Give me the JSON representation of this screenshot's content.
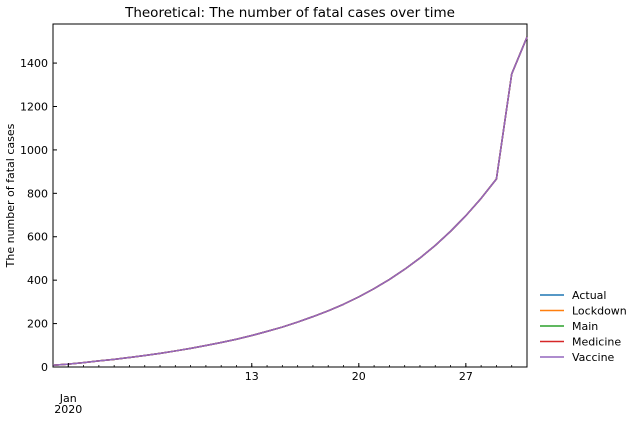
{
  "chart_data": {
    "type": "line",
    "title": "Theoretical: The number of fatal cases over time",
    "ylabel": "The number of fatal cases",
    "xlabel": "",
    "x_axis": {
      "type": "date",
      "range": [
        "2019-12-31",
        "2020-01-31"
      ],
      "major_ticks": [
        {
          "date": "2020-01-01",
          "label": "Jan",
          "sublabel": "2020"
        },
        {
          "date": "2020-01-13",
          "label": "13",
          "sublabel": ""
        },
        {
          "date": "2020-01-20",
          "label": "20",
          "sublabel": ""
        },
        {
          "date": "2020-01-27",
          "label": "27",
          "sublabel": ""
        }
      ]
    },
    "ylim": [
      0,
      1580
    ],
    "yticks": [
      0,
      200,
      400,
      600,
      800,
      1000,
      1200,
      1400
    ],
    "grid": false,
    "legend_placement": "right-bottom",
    "x": [
      "2019-12-31",
      "2020-01-01",
      "2020-01-02",
      "2020-01-03",
      "2020-01-04",
      "2020-01-05",
      "2020-01-06",
      "2020-01-07",
      "2020-01-08",
      "2020-01-09",
      "2020-01-10",
      "2020-01-11",
      "2020-01-12",
      "2020-01-13",
      "2020-01-14",
      "2020-01-15",
      "2020-01-16",
      "2020-01-17",
      "2020-01-18",
      "2020-01-19",
      "2020-01-20",
      "2020-01-21",
      "2020-01-22",
      "2020-01-23",
      "2020-01-24",
      "2020-01-25",
      "2020-01-26",
      "2020-01-27",
      "2020-01-28",
      "2020-01-29",
      "2020-01-30",
      "2020-01-31"
    ],
    "series": [
      {
        "name": "Actual",
        "color": "#1f77b4",
        "values": [
          8,
          13,
          20,
          28,
          35,
          44,
          53,
          63,
          74,
          86,
          99,
          113,
          128,
          145,
          164,
          184,
          207,
          232,
          259,
          289,
          323,
          361,
          403,
          450,
          502,
          560,
          625,
          697,
          777,
          866,
          1350,
          1520
        ]
      },
      {
        "name": "Lockdown",
        "color": "#ff7f0e",
        "values": [
          8,
          13,
          20,
          28,
          35,
          44,
          53,
          63,
          74,
          86,
          99,
          113,
          128,
          145,
          164,
          184,
          207,
          232,
          259,
          289,
          323,
          361,
          403,
          450,
          502,
          560,
          625,
          697,
          777,
          866,
          1350,
          1520
        ]
      },
      {
        "name": "Main",
        "color": "#2ca02c",
        "values": [
          8,
          13,
          20,
          28,
          35,
          44,
          53,
          63,
          74,
          86,
          99,
          113,
          128,
          145,
          164,
          184,
          207,
          232,
          259,
          289,
          323,
          361,
          403,
          450,
          502,
          560,
          625,
          697,
          777,
          866,
          1350,
          1520
        ]
      },
      {
        "name": "Medicine",
        "color": "#d62728",
        "values": [
          8,
          13,
          20,
          28,
          35,
          44,
          53,
          63,
          74,
          86,
          99,
          113,
          128,
          145,
          164,
          184,
          207,
          232,
          259,
          289,
          323,
          361,
          403,
          450,
          502,
          560,
          625,
          697,
          777,
          866,
          1350,
          1520
        ]
      },
      {
        "name": "Vaccine",
        "color": "#9467bd",
        "values": [
          8,
          13,
          20,
          28,
          35,
          44,
          53,
          63,
          74,
          86,
          99,
          113,
          128,
          145,
          164,
          184,
          207,
          232,
          259,
          289,
          323,
          361,
          403,
          450,
          502,
          560,
          625,
          697,
          777,
          866,
          1350,
          1520
        ]
      }
    ]
  }
}
